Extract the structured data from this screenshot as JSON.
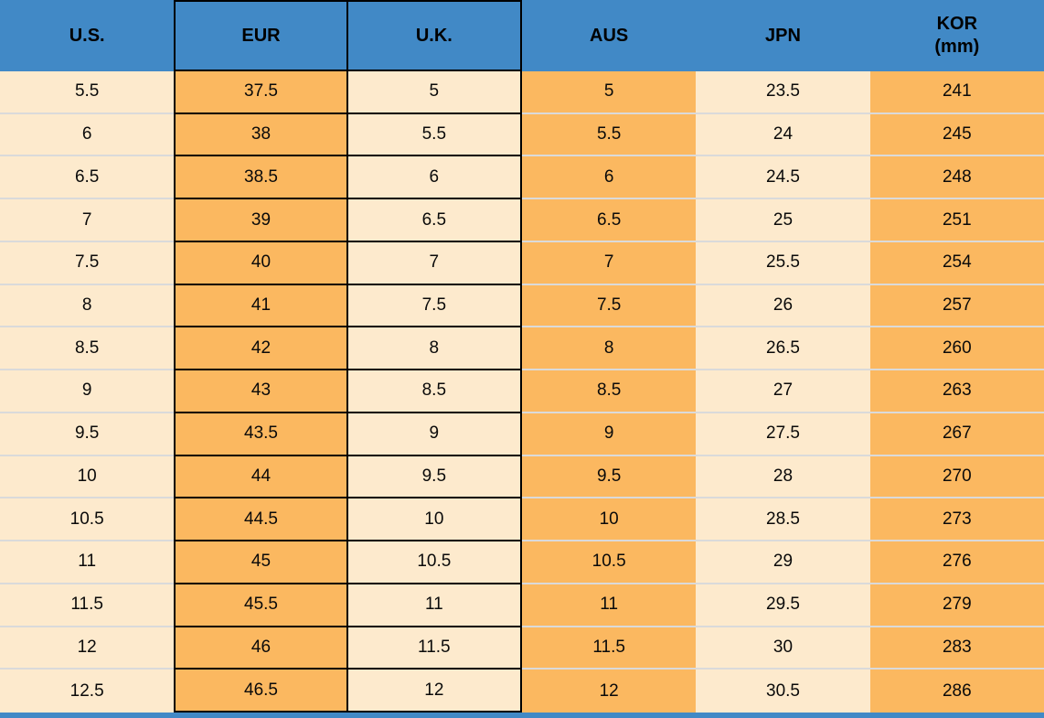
{
  "colors": {
    "header_blue": "#4189C6",
    "column_orange": "#FBB860",
    "column_cream": "#FDEACD",
    "black_border": "#000000",
    "row_divider": "#DADADA",
    "text": "#0a0a0a"
  },
  "chart_data": {
    "type": "table",
    "legend_position": "none",
    "grid": "mixed: black gridlines on EUR and U.K. columns, light-gray row dividers elsewhere",
    "columns": [
      {
        "label": "U.S.",
        "sublabel": "",
        "fill": "cream",
        "black_border": "none"
      },
      {
        "label": "EUR",
        "sublabel": "",
        "fill": "orange",
        "black_border": "lr"
      },
      {
        "label": "U.K.",
        "sublabel": "",
        "fill": "cream",
        "black_border": "r"
      },
      {
        "label": "AUS",
        "sublabel": "",
        "fill": "orange",
        "black_border": "none"
      },
      {
        "label": "JPN",
        "sublabel": "",
        "fill": "cream",
        "black_border": "none"
      },
      {
        "label": "KOR",
        "sublabel": "(mm)",
        "fill": "orange",
        "black_border": "none"
      }
    ],
    "rows": [
      [
        5.5,
        37.5,
        5,
        5,
        23.5,
        241
      ],
      [
        6,
        38,
        5.5,
        5.5,
        24,
        245
      ],
      [
        6.5,
        38.5,
        6,
        6,
        24.5,
        248
      ],
      [
        7,
        39,
        6.5,
        6.5,
        25,
        251
      ],
      [
        7.5,
        40,
        7,
        7,
        25.5,
        254
      ],
      [
        8,
        41,
        7.5,
        7.5,
        26,
        257
      ],
      [
        8.5,
        42,
        8,
        8,
        26.5,
        260
      ],
      [
        9,
        43,
        8.5,
        8.5,
        27,
        263
      ],
      [
        9.5,
        43.5,
        9,
        9,
        27.5,
        267
      ],
      [
        10,
        44,
        9.5,
        9.5,
        28,
        270
      ],
      [
        10.5,
        44.5,
        10,
        10,
        28.5,
        273
      ],
      [
        11,
        45,
        10.5,
        10.5,
        29,
        276
      ],
      [
        11.5,
        45.5,
        11,
        11,
        29.5,
        279
      ],
      [
        12,
        46,
        11.5,
        11.5,
        30,
        283
      ],
      [
        12.5,
        46.5,
        12,
        12,
        30.5,
        286
      ]
    ]
  }
}
